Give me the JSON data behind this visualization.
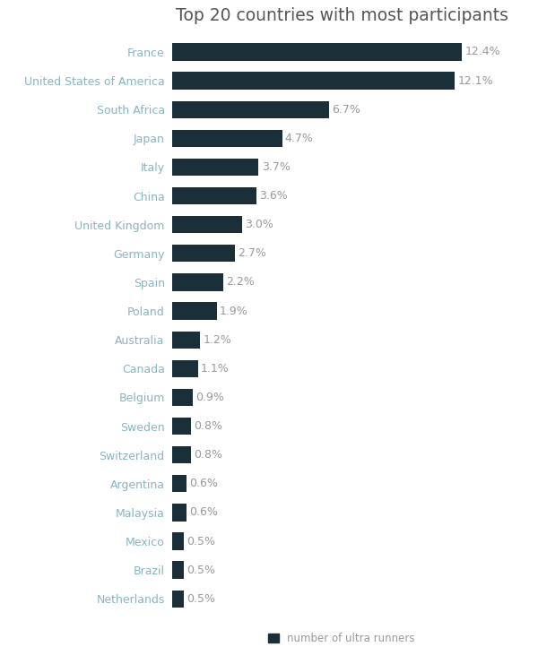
{
  "title": "Top 20 countries with most participants",
  "title_fontsize": 13.5,
  "title_color": "#555555",
  "categories": [
    "France",
    "United States of America",
    "South Africa",
    "Japan",
    "Italy",
    "China",
    "United Kingdom",
    "Germany",
    "Spain",
    "Poland",
    "Australia",
    "Canada",
    "Belgium",
    "Sweden",
    "Switzerland",
    "Argentina",
    "Malaysia",
    "Mexico",
    "Brazil",
    "Netherlands"
  ],
  "values": [
    12.4,
    12.1,
    6.7,
    4.7,
    3.7,
    3.6,
    3.0,
    2.7,
    2.2,
    1.9,
    1.2,
    1.1,
    0.9,
    0.8,
    0.8,
    0.6,
    0.6,
    0.5,
    0.5,
    0.5
  ],
  "bar_color": "#1b2f38",
  "label_color": "#999999",
  "ytick_color": "#8ab4c0",
  "value_color": "#999999",
  "background_color": "#ffffff",
  "legend_label": "number of ultra runners",
  "legend_color": "#1b2f38",
  "bar_height": 0.6,
  "xlim": [
    0,
    14.5
  ],
  "label_fontsize": 9,
  "value_fontsize": 9,
  "figsize": [
    6.0,
    7.41
  ],
  "dpi": 100
}
